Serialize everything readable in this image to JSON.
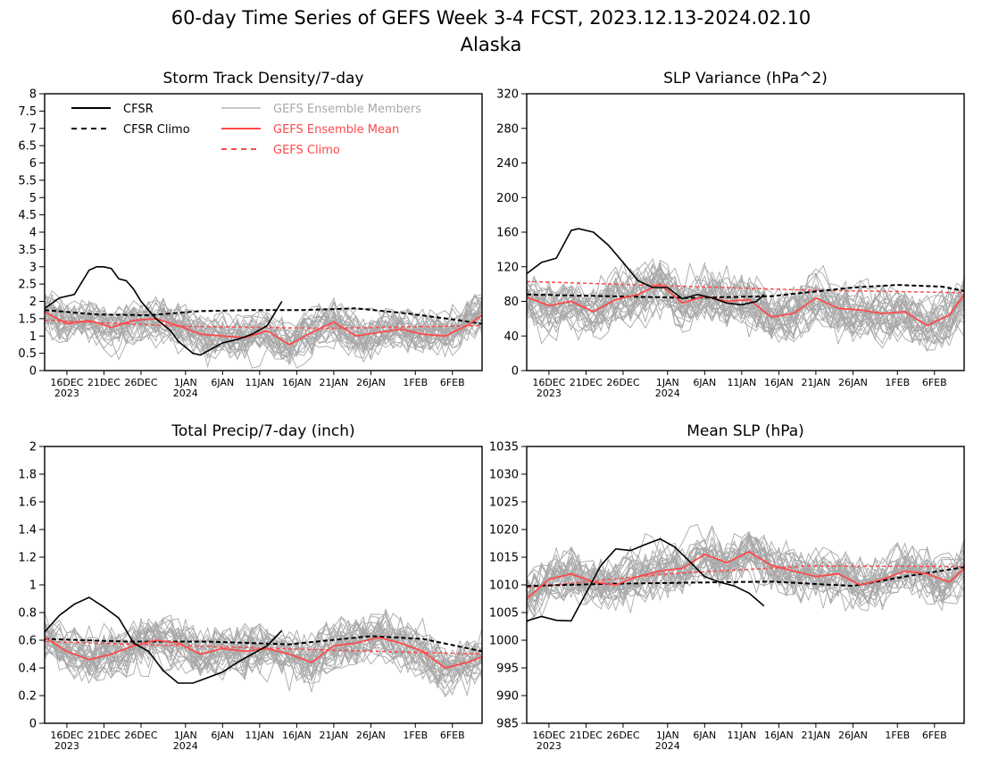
{
  "page": {
    "title": "60-day Time Series of GEFS Week 3-4 FCST, 2023.12.13-2024.02.10",
    "subtitle": "Alaska"
  },
  "colors": {
    "members": "#a8a8a8",
    "ens_mean": "#ff4a4a",
    "gefs_climo": "#ff4a4a",
    "cfsr": "#000000",
    "cfsr_climo": "#000000"
  },
  "legend": {
    "cfsr": "CFSR",
    "cfsr_climo": "CFSR Climo",
    "members": "GEFS Ensemble Members",
    "ens_mean": "GEFS Ensemble Mean",
    "gefs_climo": "GEFS Climo"
  },
  "x_axis": {
    "start_date": "2023-12-13",
    "ticks": [
      {
        "label": "16DEC",
        "sub": "2023"
      },
      {
        "label": "21DEC",
        "sub": ""
      },
      {
        "label": "26DEC",
        "sub": ""
      },
      {
        "label": "1JAN",
        "sub": "2024"
      },
      {
        "label": "6JAN",
        "sub": ""
      },
      {
        "label": "11JAN",
        "sub": ""
      },
      {
        "label": "16JAN",
        "sub": ""
      },
      {
        "label": "21JAN",
        "sub": ""
      },
      {
        "label": "26JAN",
        "sub": ""
      },
      {
        "label": "1FEB",
        "sub": ""
      },
      {
        "label": "6FEB",
        "sub": ""
      }
    ]
  },
  "chart_data": [
    {
      "type": "line",
      "title": "Storm Track Density/7-day",
      "show_legend": true,
      "ylim": [
        0,
        8
      ],
      "yticks": [
        0,
        0.5,
        1,
        1.5,
        2,
        2.5,
        3,
        3.5,
        4,
        4.5,
        5,
        5.5,
        6,
        6.5,
        7,
        7.5,
        8
      ],
      "member_count": 30,
      "member_spread": 0.55,
      "cfsr": {
        "x": [
          "2023-12-13",
          "2023-12-15",
          "2023-12-17",
          "2023-12-19",
          "2023-12-20",
          "2023-12-21",
          "2023-12-22",
          "2023-12-23",
          "2023-12-24",
          "2023-12-25",
          "2023-12-26",
          "2023-12-28",
          "2023-12-30",
          "2023-12-31",
          "2024-01-02",
          "2024-01-03",
          "2024-01-06",
          "2024-01-08",
          "2024-01-10",
          "2024-01-12",
          "2024-01-14"
        ],
        "y": [
          1.8,
          2.1,
          2.2,
          2.9,
          3.0,
          3.0,
          2.95,
          2.65,
          2.6,
          2.35,
          2.0,
          1.5,
          1.15,
          0.85,
          0.5,
          0.45,
          0.8,
          0.9,
          1.05,
          1.3,
          2.0
        ]
      },
      "cfsr_climo": {
        "x": [
          "2023-12-13",
          "2023-12-20",
          "2023-12-27",
          "2024-01-03",
          "2024-01-10",
          "2024-01-17",
          "2024-01-24",
          "2024-01-31",
          "2024-02-07",
          "2024-02-10"
        ],
        "y": [
          1.75,
          1.62,
          1.6,
          1.72,
          1.75,
          1.75,
          1.8,
          1.65,
          1.45,
          1.35
        ]
      },
      "ens_mean": {
        "x": [
          "2023-12-13",
          "2023-12-16",
          "2023-12-19",
          "2023-12-22",
          "2023-12-25",
          "2023-12-28",
          "2023-12-31",
          "2024-01-03",
          "2024-01-06",
          "2024-01-09",
          "2024-01-12",
          "2024-01-15",
          "2024-01-18",
          "2024-01-21",
          "2024-01-24",
          "2024-01-27",
          "2024-01-30",
          "2024-02-02",
          "2024-02-05",
          "2024-02-08",
          "2024-02-10"
        ],
        "y": [
          1.7,
          1.35,
          1.45,
          1.25,
          1.45,
          1.5,
          1.3,
          1.05,
          1.0,
          0.95,
          1.15,
          0.75,
          1.1,
          1.4,
          1.0,
          1.1,
          1.2,
          1.05,
          1.0,
          1.3,
          1.6
        ]
      },
      "gefs_climo": {
        "x": [
          "2023-12-13",
          "2024-01-01",
          "2024-01-20",
          "2024-02-10"
        ],
        "y": [
          1.45,
          1.28,
          1.22,
          1.3
        ]
      }
    },
    {
      "type": "line",
      "title": "SLP Variance (hPa^2)",
      "show_legend": false,
      "ylim": [
        0,
        320
      ],
      "yticks": [
        0,
        40,
        80,
        120,
        160,
        200,
        240,
        280,
        320
      ],
      "member_count": 30,
      "member_spread": 28,
      "cfsr": {
        "x": [
          "2023-12-13",
          "2023-12-15",
          "2023-12-17",
          "2023-12-19",
          "2023-12-20",
          "2023-12-22",
          "2023-12-24",
          "2023-12-26",
          "2023-12-28",
          "2023-12-30",
          "2024-01-01",
          "2024-01-03",
          "2024-01-05",
          "2024-01-07",
          "2024-01-09",
          "2024-01-11",
          "2024-01-13",
          "2024-01-14"
        ],
        "y": [
          112,
          125,
          130,
          162,
          164,
          160,
          145,
          125,
          104,
          96,
          96,
          83,
          88,
          84,
          78,
          76,
          80,
          88
        ]
      },
      "cfsr_climo": {
        "x": [
          "2023-12-13",
          "2023-12-24",
          "2024-01-04",
          "2024-01-15",
          "2024-01-26",
          "2024-02-01",
          "2024-02-07",
          "2024-02-10"
        ],
        "y": [
          88,
          86,
          84,
          86,
          96,
          99,
          97,
          92
        ]
      },
      "ens_mean": {
        "x": [
          "2023-12-13",
          "2023-12-16",
          "2023-12-19",
          "2023-12-22",
          "2023-12-25",
          "2023-12-28",
          "2023-12-31",
          "2024-01-03",
          "2024-01-06",
          "2024-01-09",
          "2024-01-12",
          "2024-01-15",
          "2024-01-18",
          "2024-01-21",
          "2024-01-24",
          "2024-01-27",
          "2024-01-30",
          "2024-02-02",
          "2024-02-05",
          "2024-02-08",
          "2024-02-10"
        ],
        "y": [
          85,
          75,
          80,
          68,
          82,
          88,
          100,
          78,
          86,
          80,
          82,
          62,
          66,
          84,
          72,
          70,
          66,
          68,
          52,
          64,
          88
        ]
      },
      "gefs_climo": {
        "x": [
          "2023-12-13",
          "2024-01-01",
          "2024-01-20",
          "2024-02-10"
        ],
        "y": [
          103,
          98,
          93,
          90
        ]
      }
    },
    {
      "type": "line",
      "title": "Total Precip/7-day (inch)",
      "show_legend": false,
      "ylim": [
        0,
        2
      ],
      "yticks": [
        0,
        0.2,
        0.4,
        0.6,
        0.8,
        1,
        1.2,
        1.4,
        1.6,
        1.8,
        2
      ],
      "member_count": 30,
      "member_spread": 0.16,
      "cfsr": {
        "x": [
          "2023-12-13",
          "2023-12-15",
          "2023-12-17",
          "2023-12-19",
          "2023-12-21",
          "2023-12-23",
          "2023-12-25",
          "2023-12-27",
          "2023-12-29",
          "2023-12-31",
          "2024-01-02",
          "2024-01-04",
          "2024-01-06",
          "2024-01-08",
          "2024-01-10",
          "2024-01-12",
          "2024-01-14"
        ],
        "y": [
          0.66,
          0.78,
          0.86,
          0.91,
          0.84,
          0.76,
          0.58,
          0.52,
          0.38,
          0.29,
          0.29,
          0.33,
          0.37,
          0.44,
          0.5,
          0.56,
          0.67
        ]
      },
      "cfsr_climo": {
        "x": [
          "2023-12-13",
          "2023-12-24",
          "2024-01-04",
          "2024-01-15",
          "2024-01-26",
          "2024-02-02",
          "2024-02-10"
        ],
        "y": [
          0.61,
          0.59,
          0.59,
          0.57,
          0.63,
          0.61,
          0.52
        ]
      },
      "ens_mean": {
        "x": [
          "2023-12-13",
          "2023-12-16",
          "2023-12-19",
          "2023-12-22",
          "2023-12-25",
          "2023-12-28",
          "2023-12-31",
          "2024-01-03",
          "2024-01-06",
          "2024-01-09",
          "2024-01-12",
          "2024-01-15",
          "2024-01-18",
          "2024-01-21",
          "2024-01-24",
          "2024-01-27",
          "2024-01-30",
          "2024-02-02",
          "2024-02-05",
          "2024-02-08",
          "2024-02-10"
        ],
        "y": [
          0.62,
          0.52,
          0.46,
          0.5,
          0.56,
          0.6,
          0.58,
          0.5,
          0.54,
          0.52,
          0.54,
          0.5,
          0.44,
          0.56,
          0.58,
          0.62,
          0.58,
          0.52,
          0.4,
          0.44,
          0.48
        ]
      },
      "gefs_climo": {
        "x": [
          "2023-12-13",
          "2024-01-01",
          "2024-01-20",
          "2024-02-10"
        ],
        "y": [
          0.59,
          0.56,
          0.53,
          0.5
        ]
      }
    },
    {
      "type": "line",
      "title": "Mean SLP (hPa)",
      "show_legend": false,
      "ylim": [
        985,
        1035
      ],
      "yticks": [
        985,
        990,
        995,
        1000,
        1005,
        1010,
        1015,
        1020,
        1025,
        1030,
        1035
      ],
      "member_count": 30,
      "member_spread": 4,
      "cfsr": {
        "x": [
          "2023-12-13",
          "2023-12-15",
          "2023-12-17",
          "2023-12-19",
          "2023-12-21",
          "2023-12-23",
          "2023-12-25",
          "2023-12-27",
          "2023-12-29",
          "2023-12-31",
          "2024-01-02",
          "2024-01-04",
          "2024-01-06",
          "2024-01-08",
          "2024-01-10",
          "2024-01-12",
          "2024-01-14"
        ],
        "y": [
          1003.5,
          1004.3,
          1003.6,
          1003.5,
          1008.5,
          1013.5,
          1016.5,
          1016.2,
          1017.3,
          1018.3,
          1016.8,
          1014.2,
          1011.5,
          1010.5,
          1009.8,
          1008.5,
          1006.2
        ]
      },
      "cfsr_climo": {
        "x": [
          "2023-12-13",
          "2023-12-24",
          "2024-01-04",
          "2024-01-15",
          "2024-01-26",
          "2024-02-02",
          "2024-02-10"
        ],
        "y": [
          1009.8,
          1010.2,
          1010.4,
          1010.6,
          1009.8,
          1011.5,
          1013.2
        ]
      },
      "ens_mean": {
        "x": [
          "2023-12-13",
          "2023-12-16",
          "2023-12-19",
          "2023-12-22",
          "2023-12-25",
          "2023-12-28",
          "2023-12-31",
          "2024-01-03",
          "2024-01-06",
          "2024-01-09",
          "2024-01-12",
          "2024-01-15",
          "2024-01-18",
          "2024-01-21",
          "2024-01-24",
          "2024-01-27",
          "2024-01-30",
          "2024-02-02",
          "2024-02-05",
          "2024-02-08",
          "2024-02-10"
        ],
        "y": [
          1007.5,
          1011.0,
          1012.0,
          1010.5,
          1010.0,
          1011.5,
          1012.5,
          1013.0,
          1015.5,
          1014.0,
          1016.0,
          1013.5,
          1012.5,
          1011.5,
          1012.0,
          1010.0,
          1011.0,
          1012.5,
          1012.0,
          1010.5,
          1013.0
        ]
      },
      "gefs_climo": {
        "x": [
          "2023-12-13",
          "2024-01-01",
          "2024-01-20",
          "2024-02-10"
        ],
        "y": [
          1009.5,
          1012.0,
          1013.4,
          1013.3
        ]
      }
    }
  ]
}
